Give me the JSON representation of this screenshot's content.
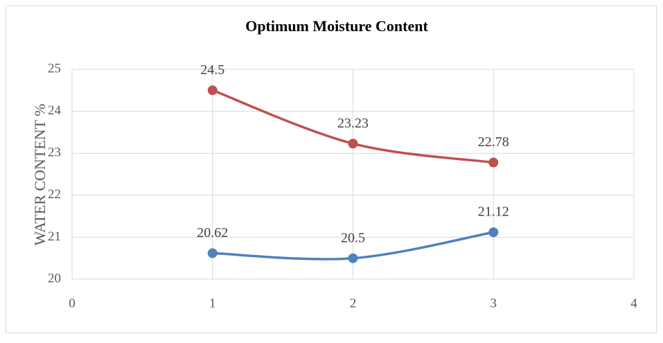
{
  "chart_data": {
    "type": "line",
    "title": "Optimum Moisture Content",
    "y_label": "WATER CONTENT %",
    "x": [
      1,
      2,
      3
    ],
    "series": [
      {
        "color": "#c0504d",
        "values": [
          24.5,
          23.23,
          22.78
        ]
      },
      {
        "color": "#4f81bd",
        "values": [
          20.62,
          20.5,
          21.12
        ]
      }
    ],
    "xlim": [
      0,
      4
    ],
    "ylim": [
      20,
      25
    ],
    "xticks": [
      0,
      1,
      2,
      3,
      4
    ],
    "yticks": [
      20,
      21,
      22,
      23,
      24,
      25
    ],
    "grid": true,
    "smooth": true
  }
}
